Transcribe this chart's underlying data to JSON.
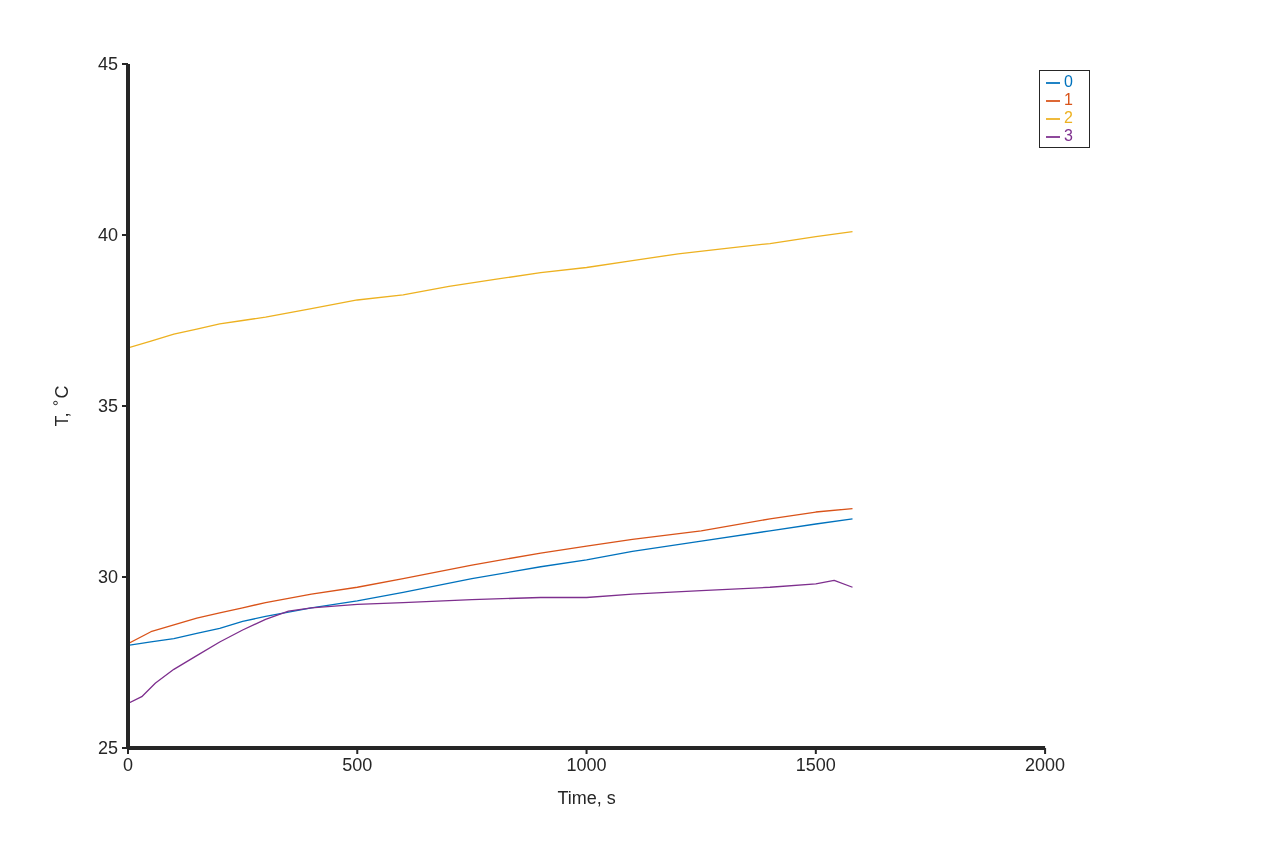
{
  "chart_data": {
    "type": "line",
    "xlabel": "Time, s",
    "ylabel": "T, $^{∘}$C",
    "xlim": [
      0,
      2000
    ],
    "xticks": [
      0,
      500,
      1000,
      1500,
      2000
    ],
    "ylim": [
      25,
      45
    ],
    "yticks": [
      25,
      30,
      35,
      40,
      45
    ],
    "grid": false,
    "legend": "top right",
    "marker": "none",
    "line_style": "solid",
    "series": [
      {
        "name": "0",
        "color": "#0072bd",
        "x": [
          0,
          50,
          100,
          150,
          200,
          250,
          300,
          400,
          500,
          600,
          750,
          900,
          1000,
          1100,
          1250,
          1400,
          1500,
          1580
        ],
        "values": [
          28.0,
          28.1,
          28.2,
          28.35,
          28.5,
          28.7,
          28.85,
          29.1,
          29.3,
          29.55,
          29.95,
          30.3,
          30.5,
          30.75,
          31.05,
          31.35,
          31.55,
          31.7
        ]
      },
      {
        "name": "1",
        "color": "#d95319",
        "x": [
          0,
          50,
          100,
          150,
          200,
          250,
          300,
          400,
          500,
          600,
          750,
          900,
          1000,
          1100,
          1250,
          1400,
          1500,
          1580
        ],
        "values": [
          28.05,
          28.4,
          28.6,
          28.8,
          28.95,
          29.1,
          29.25,
          29.5,
          29.7,
          29.95,
          30.35,
          30.7,
          30.9,
          31.1,
          31.35,
          31.7,
          31.9,
          32.0
        ]
      },
      {
        "name": "2",
        "color": "#edb120",
        "x": [
          0,
          50,
          100,
          150,
          200,
          250,
          300,
          400,
          500,
          600,
          700,
          800,
          900,
          1000,
          1100,
          1200,
          1300,
          1400,
          1500,
          1580
        ],
        "values": [
          36.7,
          36.9,
          37.1,
          37.25,
          37.4,
          37.5,
          37.6,
          37.85,
          38.1,
          38.25,
          38.5,
          38.7,
          38.9,
          39.05,
          39.25,
          39.45,
          39.6,
          39.75,
          39.95,
          40.1
        ]
      },
      {
        "name": "3",
        "color": "#7e2f8e",
        "x": [
          0,
          30,
          60,
          100,
          150,
          200,
          250,
          300,
          350,
          400,
          500,
          600,
          750,
          900,
          1000,
          1100,
          1250,
          1400,
          1500,
          1540,
          1580
        ],
        "values": [
          26.3,
          26.5,
          26.9,
          27.3,
          27.7,
          28.1,
          28.45,
          28.76,
          29.0,
          29.1,
          29.2,
          29.25,
          29.34,
          29.4,
          29.4,
          29.5,
          29.6,
          29.7,
          29.8,
          29.9,
          29.7
        ]
      }
    ]
  }
}
